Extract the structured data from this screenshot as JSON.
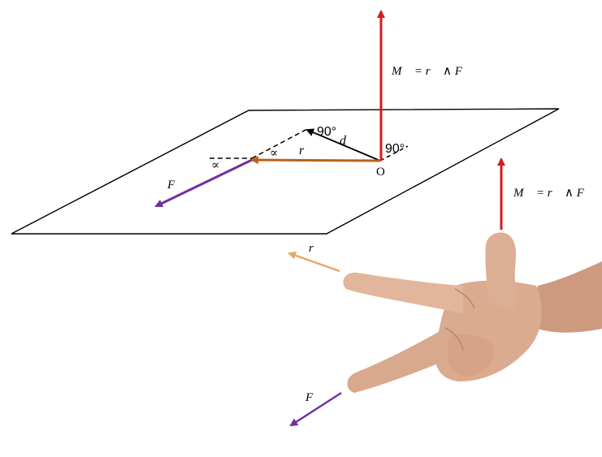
{
  "labels": {
    "moment_top": "M⃗ = r⃗ ∧ F⃗",
    "moment_hand": "M⃗ = r⃗ ∧ F⃗",
    "angle_d": "90°",
    "angle_O": "90°",
    "d": "d",
    "r_vec": "r⃗",
    "F_vec": "F⃗",
    "alpha_1": "∝",
    "alpha_2": "∝",
    "origin": "O",
    "r_hand": "r⃗",
    "F_hand": "F⃗"
  },
  "colors": {
    "moment": "#d7191c",
    "position": "#b8621b",
    "position_light": "#e8a662",
    "force": "#7030a0",
    "plane": "#000000",
    "skin": "#d9a98e"
  }
}
